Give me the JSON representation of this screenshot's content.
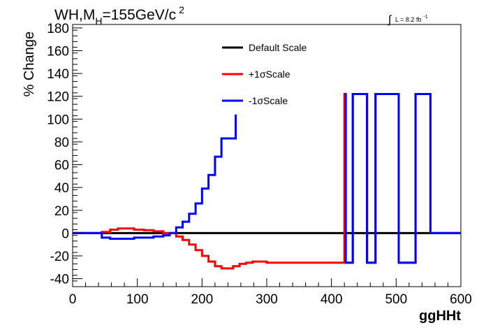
{
  "chart_data": {
    "type": "line",
    "title_main": "WH,M",
    "title_sub": "H",
    "title_rest": "=155GeV/c",
    "title_sup": "2",
    "lumi_text": "L = 8.2 fb",
    "lumi_sup": "-1",
    "xlabel": "ggHHt",
    "ylabel": "% Change",
    "xlim": [
      0,
      600
    ],
    "ylim": [
      -47,
      183
    ],
    "xticks": [
      0,
      100,
      200,
      300,
      400,
      500,
      600
    ],
    "yticks": [
      -40,
      -20,
      0,
      20,
      40,
      60,
      80,
      100,
      120,
      140,
      160,
      180
    ],
    "legend_position": "top-center",
    "series": [
      {
        "name": "Default Scale",
        "color": "#000000",
        "x": [
          0,
          600
        ],
        "y": [
          0,
          0
        ]
      },
      {
        "name": "+1σScale",
        "color": "#ff0000",
        "x": [
          0,
          45,
          45,
          58,
          58,
          70,
          70,
          95,
          95,
          110,
          110,
          125,
          125,
          140,
          140,
          160,
          160,
          170,
          170,
          180,
          180,
          190,
          190,
          200,
          200,
          210,
          210,
          220,
          220,
          230,
          230,
          248,
          248,
          258,
          258,
          268,
          268,
          278,
          278,
          300,
          300,
          330,
          330,
          420,
          420,
          422,
          422,
          433,
          433,
          455,
          455,
          468,
          468,
          504,
          504,
          530,
          530,
          553,
          553,
          600
        ],
        "y": [
          0,
          0,
          1,
          1,
          3,
          3,
          4,
          4,
          3,
          3,
          2.5,
          2.5,
          1.5,
          1.5,
          0,
          0,
          -3,
          -3,
          -6,
          -6,
          -10,
          -10,
          -15,
          -15,
          -20,
          -20,
          -25,
          -25,
          -29,
          -29,
          -31,
          -31,
          -29,
          -29,
          -27,
          -27,
          -26,
          -26,
          -25,
          -25,
          -26,
          -26,
          -26,
          -26,
          122,
          122,
          -26,
          -26,
          122,
          122,
          -26,
          -26,
          122,
          122,
          -26,
          -26,
          122,
          122,
          0,
          0
        ]
      },
      {
        "name": "-1σScale",
        "color": "#0000ff",
        "x": [
          0,
          45,
          45,
          58,
          58,
          95,
          95,
          125,
          125,
          140,
          140,
          150,
          150,
          160,
          160,
          170,
          170,
          180,
          180,
          190,
          190,
          200,
          200,
          210,
          210,
          220,
          220,
          230,
          230,
          240,
          240,
          252,
          252
        ],
        "y": [
          0,
          0,
          -4,
          -4,
          -5,
          -5,
          -4,
          -4,
          -3,
          -3,
          -2,
          -2,
          0,
          0,
          5,
          5,
          10,
          10,
          17,
          17,
          26,
          26,
          39,
          39,
          51,
          51,
          67,
          67,
          83,
          83,
          83,
          83,
          104
        ]
      },
      {
        "name": "",
        "color": "#0000ff",
        "x": [
          420,
          422,
          422,
          433,
          433,
          455,
          455,
          468,
          468,
          504,
          504,
          530,
          530,
          553,
          553,
          600
        ],
        "y": [
          122,
          122,
          -26,
          -26,
          122,
          122,
          -26,
          -26,
          122,
          122,
          -26,
          -26,
          122,
          122,
          0,
          0
        ]
      }
    ]
  }
}
